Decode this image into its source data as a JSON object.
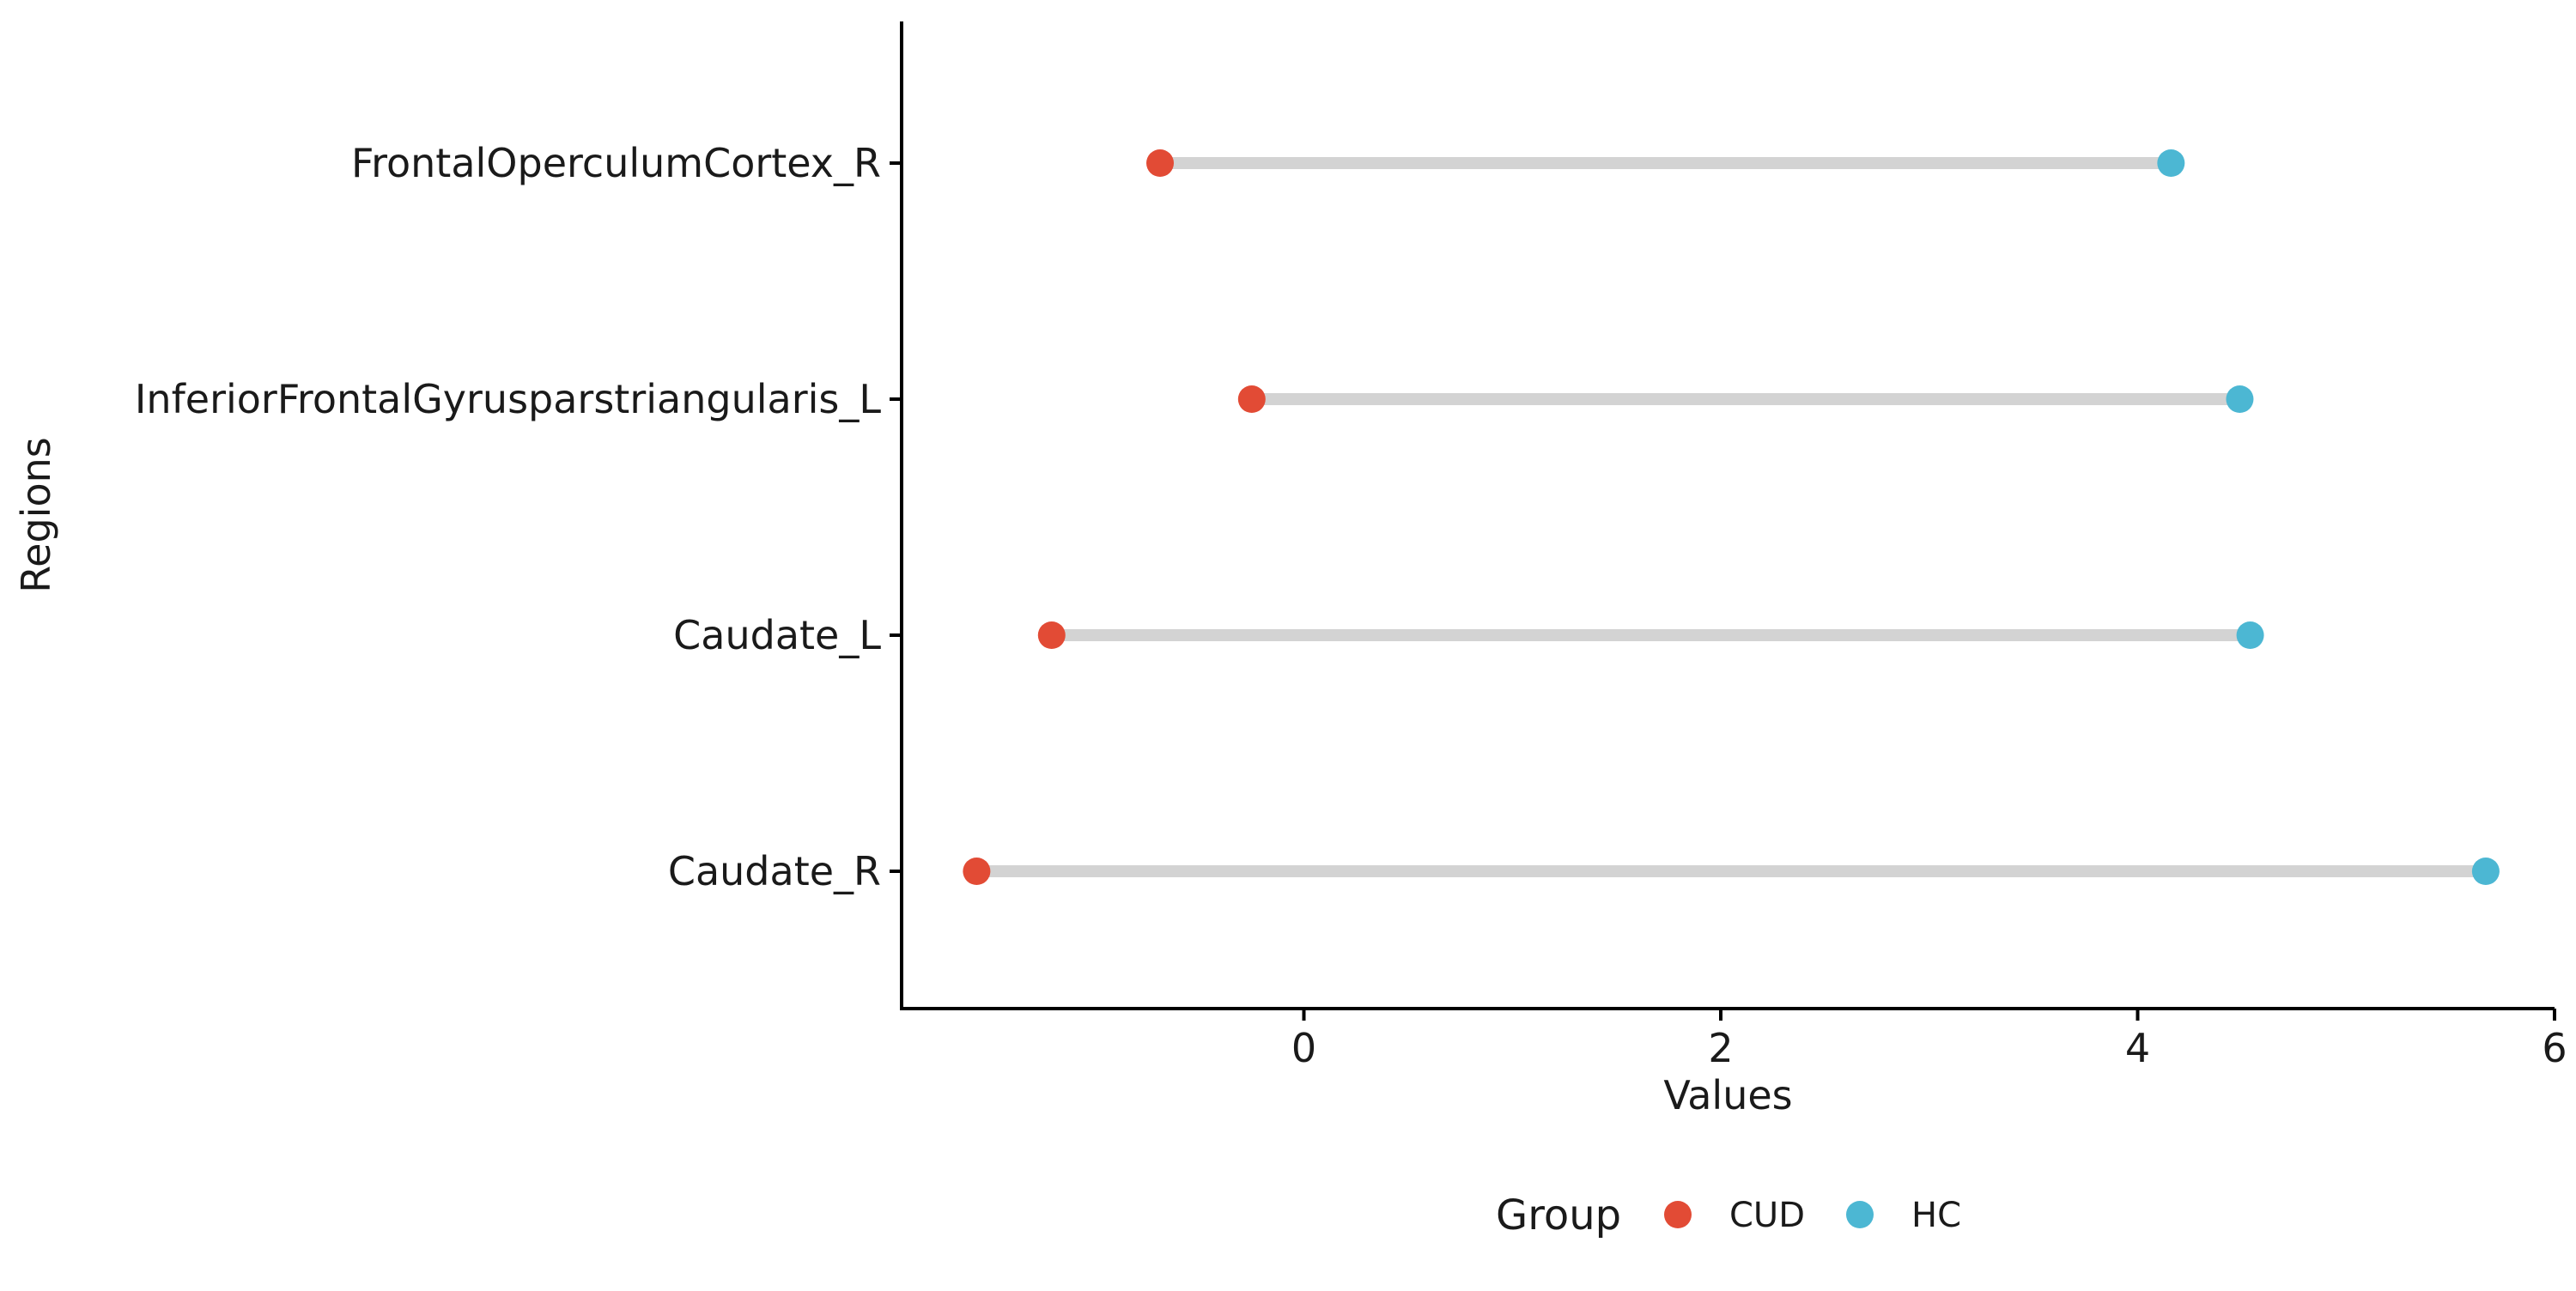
{
  "chart_data": {
    "type": "dumbbell",
    "title": "",
    "xlabel": "Values",
    "ylabel": "Regions",
    "xlim": [
      -1.93,
      6.0
    ],
    "x_ticks": [
      0,
      2,
      4,
      6
    ],
    "x_tick_labels": [
      "0",
      "2",
      "4",
      "6"
    ],
    "categories": [
      "FrontalOperculumCortex_R",
      "InferiorFrontalGyrusparstriangularis_L",
      "Caudate_L",
      "Caudate_R"
    ],
    "series": [
      {
        "name": "CUD",
        "color": "#e24b35",
        "values": [
          -0.69,
          -0.25,
          -1.21,
          -1.57
        ]
      },
      {
        "name": "HC",
        "color": "#4cb7d3",
        "values": [
          4.16,
          4.49,
          4.54,
          5.67
        ]
      }
    ],
    "legend": {
      "title": "Group",
      "position": "bottom",
      "items": [
        "CUD",
        "HC"
      ]
    },
    "segment_color": "#d3d3d3",
    "grid": false
  }
}
